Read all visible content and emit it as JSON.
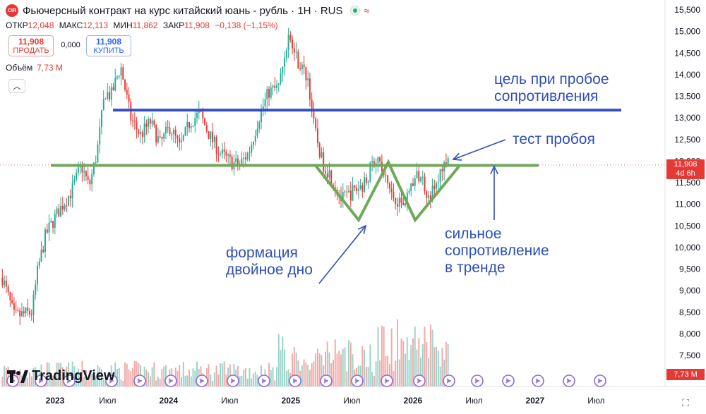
{
  "header": {
    "symbol_icon": "CIR",
    "title": "Фьючерсный контракт на курс китайский юань - рубль · 1H · RUS",
    "status_icon": "market-open-dot-icon",
    "wave_icon": "≈"
  },
  "ohlc": {
    "open_label": "ОТКР",
    "open": "12,048",
    "high_label": "МАКС",
    "high": "12,113",
    "low_label": "МИН",
    "low": "11,862",
    "close_label": "ЗАКР",
    "close": "11,908",
    "change": "−0,138 (−1,15%)"
  },
  "trade": {
    "sell_price": "11,908",
    "sell_label": "ПРОДАТЬ",
    "spread": "0,000",
    "buy_price": "11,908",
    "buy_label": "КУПИТЬ"
  },
  "volume": {
    "label": "Объём",
    "value": "7,73 M"
  },
  "logo": {
    "text": "TradingView"
  },
  "price_tag": {
    "value": "11,908",
    "countdown": "4d 6h"
  },
  "volume_tag": {
    "value": "7,73 M"
  },
  "annotations": {
    "target": [
      "цель при пробое",
      "сопротивления"
    ],
    "test": "тест пробоя",
    "formation": [
      "формация",
      "двойное дно"
    ],
    "resistance": [
      "сильное",
      "сопротивление",
      "в тренде"
    ]
  },
  "colors": {
    "up": "#22ab94",
    "down": "#e53935",
    "resistance_line": "#70a85a",
    "target_line": "#3550c4",
    "annotation": "#2e4fb6"
  },
  "chart_data": {
    "type": "candlestick",
    "y_ticks": [
      "15,500",
      "15,000",
      "14,500",
      "14,000",
      "13,500",
      "13,000",
      "12,500",
      "12,000",
      "11,500",
      "11,000",
      "10,500",
      "10,000",
      "9,500",
      "9,000",
      "8,500",
      "8,000",
      "7,500"
    ],
    "y_tick_values": [
      15.5,
      15.0,
      14.5,
      14.0,
      13.5,
      13.0,
      12.5,
      12.0,
      11.5,
      11.0,
      10.5,
      10.0,
      9.5,
      9.0,
      8.5,
      8.0,
      7.5
    ],
    "ylim": [
      7.1,
      15.7
    ],
    "x_ticks": [
      {
        "label": "2023",
        "bold": true,
        "t": 0.07
      },
      {
        "label": "Июл",
        "bold": false,
        "t": 0.5
      },
      {
        "label": "2024",
        "bold": true,
        "t": 1.0
      },
      {
        "label": "Июл",
        "bold": false,
        "t": 1.5
      },
      {
        "label": "2025",
        "bold": true,
        "t": 2.0
      },
      {
        "label": "Июл",
        "bold": false,
        "t": 2.5
      },
      {
        "label": "2026",
        "bold": true,
        "t": 3.0
      },
      {
        "label": "Июл",
        "bold": false,
        "t": 3.5
      },
      {
        "label": "2027",
        "bold": true,
        "t": 4.0
      },
      {
        "label": "Июл",
        "bold": false,
        "t": 4.5
      }
    ],
    "anchors": [
      [
        0.0,
        9.3
      ],
      [
        0.06,
        8.4
      ],
      [
        0.15,
        8.5
      ],
      [
        0.18,
        9.5
      ],
      [
        0.22,
        10.3
      ],
      [
        0.28,
        10.8
      ],
      [
        0.35,
        11.3
      ],
      [
        0.4,
        11.9
      ],
      [
        0.44,
        11.4
      ],
      [
        0.48,
        12.2
      ],
      [
        0.52,
        13.6
      ],
      [
        0.55,
        13.5
      ],
      [
        0.6,
        14.2
      ],
      [
        0.65,
        13.0
      ],
      [
        0.7,
        12.6
      ],
      [
        0.75,
        12.9
      ],
      [
        0.8,
        12.4
      ],
      [
        0.85,
        12.8
      ],
      [
        0.9,
        12.3
      ],
      [
        0.95,
        12.9
      ],
      [
        1.0,
        13.1
      ],
      [
        1.05,
        12.6
      ],
      [
        1.1,
        12.2
      ],
      [
        1.15,
        12.0
      ],
      [
        1.2,
        11.9
      ],
      [
        1.25,
        12.2
      ],
      [
        1.3,
        13.0
      ],
      [
        1.35,
        13.6
      ],
      [
        1.4,
        13.7
      ],
      [
        1.45,
        14.9
      ],
      [
        1.5,
        14.3
      ],
      [
        1.55,
        13.9
      ],
      [
        1.58,
        12.8
      ],
      [
        1.62,
        12.0
      ],
      [
        1.66,
        11.7
      ],
      [
        1.72,
        11.1
      ],
      [
        1.78,
        11.3
      ],
      [
        1.84,
        11.5
      ],
      [
        1.88,
        12.0
      ],
      [
        1.9,
        12.1
      ],
      [
        1.94,
        11.6
      ],
      [
        1.98,
        11.2
      ],
      [
        2.03,
        11.0
      ],
      [
        2.08,
        11.5
      ],
      [
        2.12,
        11.7
      ],
      [
        2.16,
        11.2
      ],
      [
        2.2,
        11.4
      ],
      [
        2.24,
        12.0
      ],
      [
        2.26,
        11.9
      ]
    ],
    "volume_range": [
      0.03,
      1.0
    ],
    "resistance_level": 11.9,
    "target_level": 13.18,
    "date_range": [
      "2022-11",
      "2026-03"
    ]
  }
}
